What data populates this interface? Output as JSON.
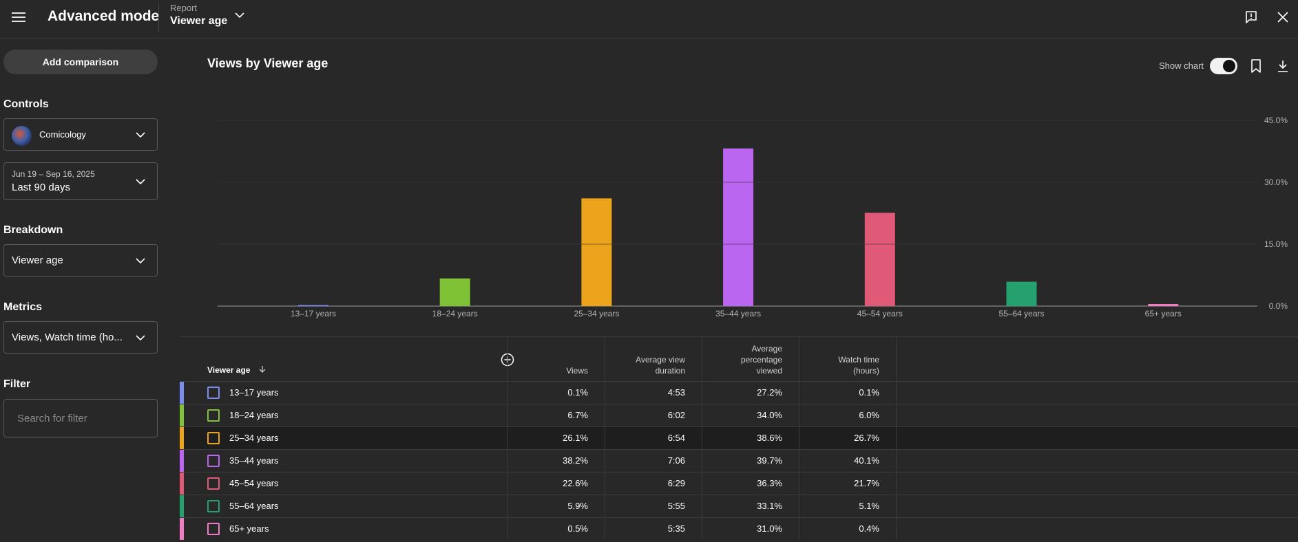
{
  "header": {
    "app_title": "Advanced mode",
    "report_label": "Report",
    "report_value": "Viewer age"
  },
  "sidebar": {
    "add_comparison": "Add comparison",
    "controls_heading": "Controls",
    "channel_name": "Comicology",
    "date_range_sub": "Jun 19 – Sep 16, 2025",
    "date_range_main": "Last 90 days",
    "breakdown_heading": "Breakdown",
    "breakdown_value": "Viewer age",
    "metrics_heading": "Metrics",
    "metrics_value": "Views, Watch time (ho...",
    "filter_heading": "Filter",
    "filter_placeholder": "Search for filter"
  },
  "panel": {
    "title": "Views by Viewer age",
    "show_chart_label": "Show chart",
    "show_chart_on": true
  },
  "chart_data": {
    "type": "bar",
    "title": "Views by Viewer age",
    "categories": [
      "13–17 years",
      "18–24 years",
      "25–34 years",
      "35–44 years",
      "45–54 years",
      "55–64 years",
      "65+ years"
    ],
    "values": [
      0.1,
      6.7,
      26.1,
      38.2,
      22.6,
      5.9,
      0.5
    ],
    "colors": [
      "#7b8cf0",
      "#7fc236",
      "#eba41c",
      "#bb66f0",
      "#e05a78",
      "#25a06f",
      "#f07cc3"
    ],
    "y_ticks": [
      "0.0%",
      "15.0%",
      "30.0%",
      "45.0%"
    ],
    "y_tick_values": [
      0,
      15,
      30,
      45
    ],
    "ylim": [
      0,
      45
    ],
    "grid": true,
    "y_axis_side": "right"
  },
  "table": {
    "columns": [
      {
        "key": "age",
        "label": "Viewer age",
        "sorted": "desc"
      },
      {
        "key": "views",
        "label": "Views"
      },
      {
        "key": "avd",
        "label": "Average view duration",
        "lines": [
          "Average view",
          "duration"
        ]
      },
      {
        "key": "apv",
        "label": "Average percentage viewed",
        "lines": [
          "Average",
          "percentage",
          "viewed"
        ]
      },
      {
        "key": "wt",
        "label": "Watch time (hours)",
        "lines": [
          "Watch time",
          "(hours)"
        ]
      }
    ],
    "rows": [
      {
        "age": "13–17 years",
        "views": "0.1%",
        "avd": "4:53",
        "apv": "27.2%",
        "wt": "0.1%",
        "color": "#7b8cf0"
      },
      {
        "age": "18–24 years",
        "views": "6.7%",
        "avd": "6:02",
        "apv": "34.0%",
        "wt": "6.0%",
        "color": "#7fc236"
      },
      {
        "age": "25–34 years",
        "views": "26.1%",
        "avd": "6:54",
        "apv": "38.6%",
        "wt": "26.7%",
        "color": "#eba41c"
      },
      {
        "age": "35–44 years",
        "views": "38.2%",
        "avd": "7:06",
        "apv": "39.7%",
        "wt": "40.1%",
        "color": "#bb66f0"
      },
      {
        "age": "45–54 years",
        "views": "22.6%",
        "avd": "6:29",
        "apv": "36.3%",
        "wt": "21.7%",
        "color": "#e05a78"
      },
      {
        "age": "55–64 years",
        "views": "5.9%",
        "avd": "5:55",
        "apv": "33.1%",
        "wt": "5.1%",
        "color": "#25a06f"
      },
      {
        "age": "65+ years",
        "views": "0.5%",
        "avd": "5:35",
        "apv": "31.0%",
        "wt": "0.4%",
        "color": "#f07cc3"
      }
    ],
    "highlighted_row": 2
  },
  "icons": {
    "menu": "hamburger-menu-icon",
    "report_dropdown": "chevron-down-icon",
    "feedback": "feedback-icon",
    "close": "close-icon",
    "bookmark": "bookmark-icon",
    "download": "download-icon",
    "add_column": "add-circle-icon",
    "sort": "arrow-down-icon"
  }
}
